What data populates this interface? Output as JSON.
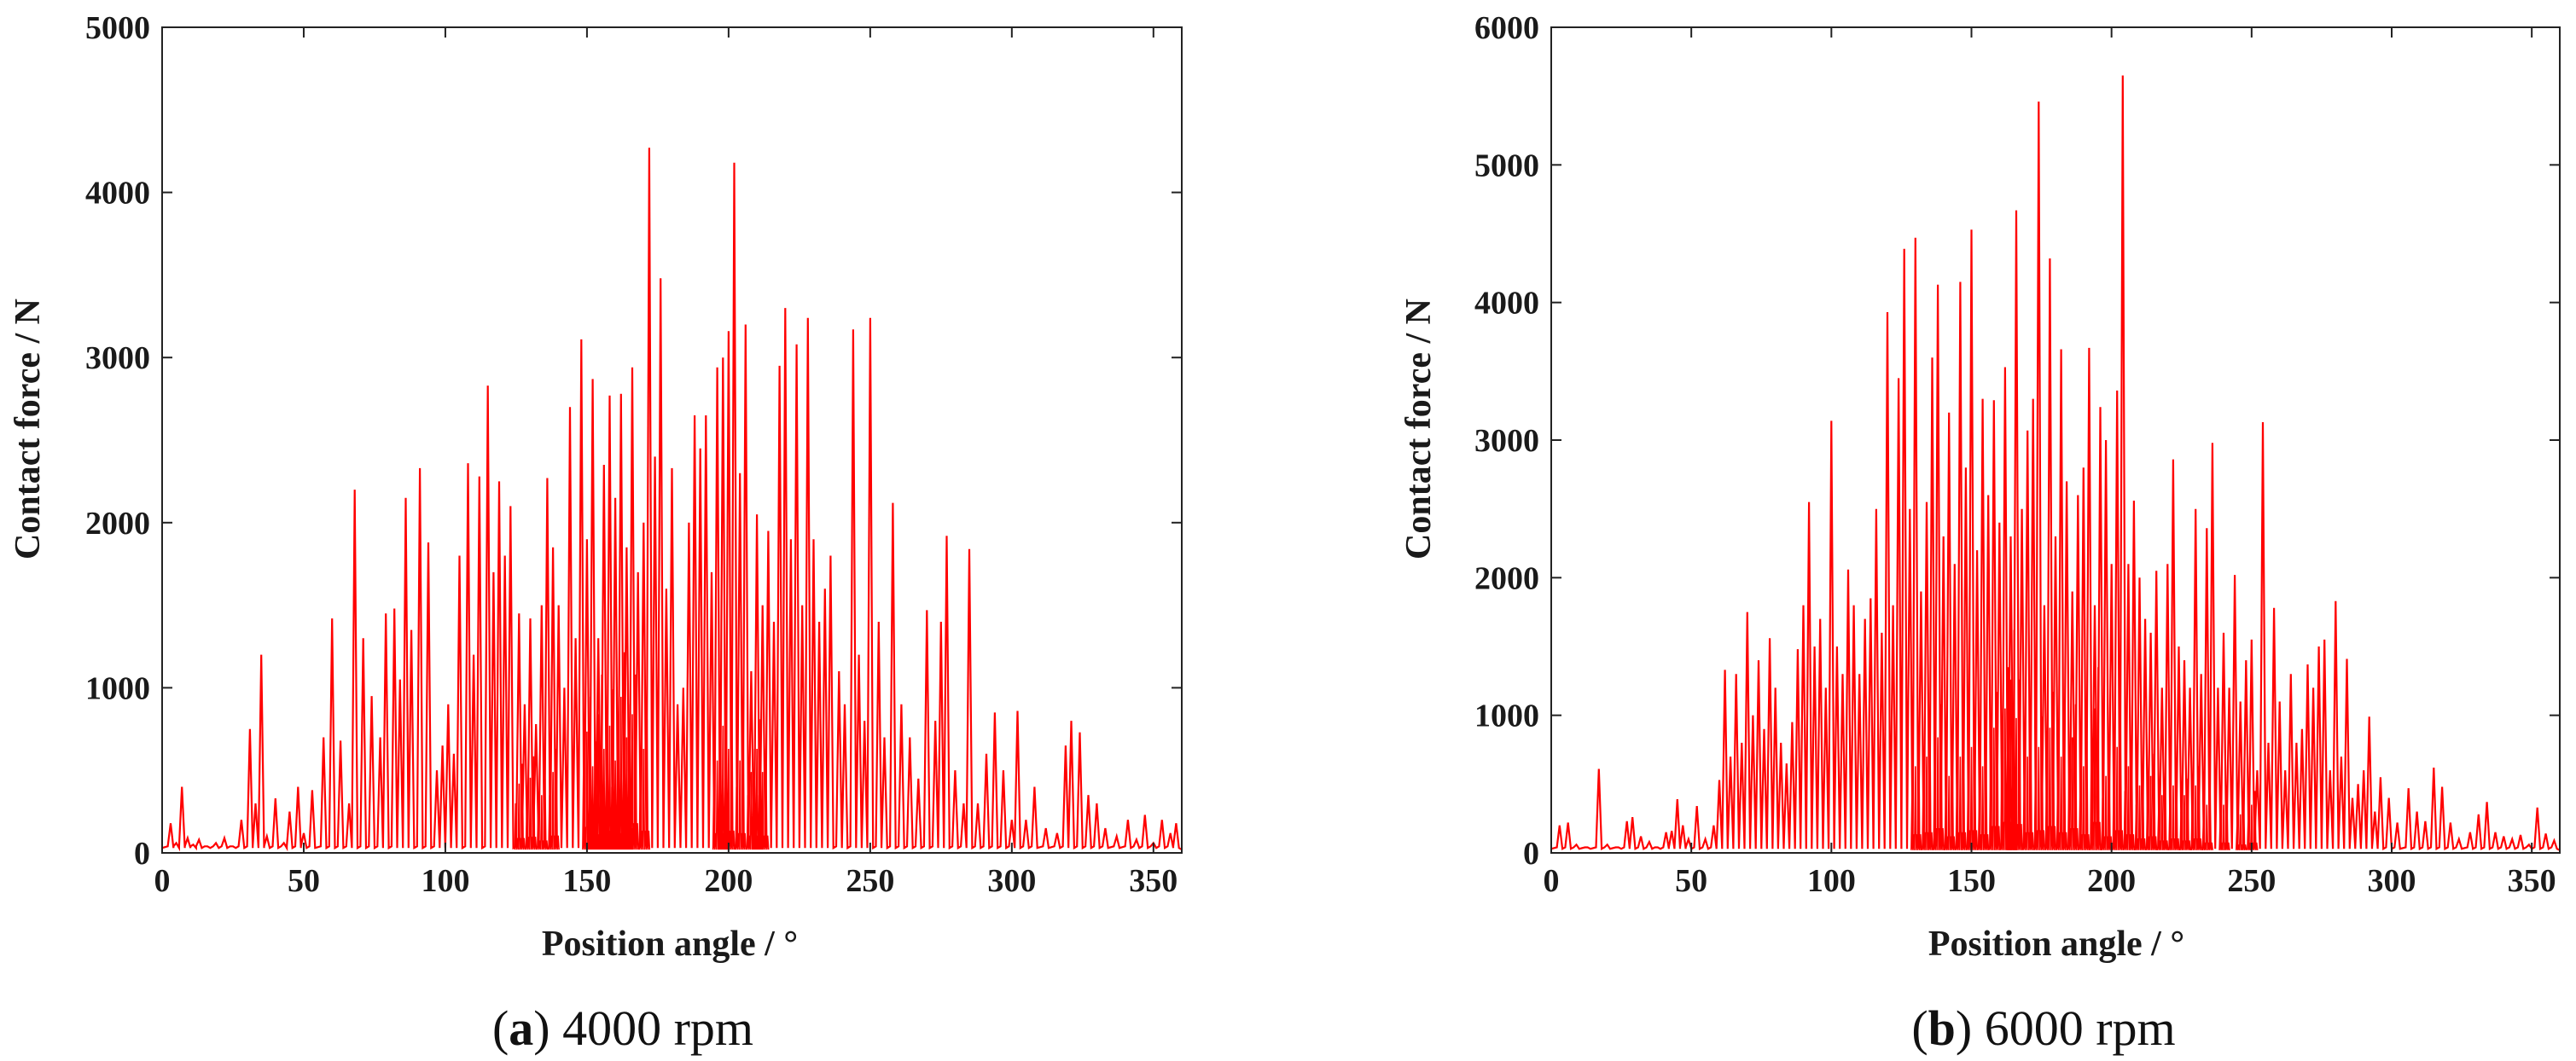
{
  "chart_data": [
    {
      "type": "line",
      "caption": {
        "letter": "a",
        "text": "4000 rpm"
      },
      "xlabel": "Position angle / °",
      "ylabel": "Contact force / N",
      "xlim": [
        0,
        360
      ],
      "ylim": [
        0,
        5000
      ],
      "xticks": [
        0,
        50,
        100,
        150,
        200,
        250,
        300,
        350
      ],
      "yticks": [
        0,
        1000,
        2000,
        3000,
        4000,
        5000
      ],
      "color": "#ff0000",
      "grid": false,
      "peaks": [
        [
          3,
          180
        ],
        [
          5,
          60
        ],
        [
          7,
          400
        ],
        [
          9,
          90
        ],
        [
          11,
          50
        ],
        [
          13,
          80
        ],
        [
          16,
          40
        ],
        [
          19,
          60
        ],
        [
          22,
          90
        ],
        [
          25,
          40
        ],
        [
          28,
          200
        ],
        [
          31,
          750
        ],
        [
          33,
          300
        ],
        [
          35,
          1200
        ],
        [
          37,
          100
        ],
        [
          40,
          330
        ],
        [
          43,
          60
        ],
        [
          45,
          250
        ],
        [
          48,
          400
        ],
        [
          50,
          120
        ],
        [
          53,
          380
        ],
        [
          57,
          700
        ],
        [
          60,
          1420
        ],
        [
          63,
          680
        ],
        [
          66,
          300
        ],
        [
          68,
          2200
        ],
        [
          71,
          1300
        ],
        [
          74,
          950
        ],
        [
          77,
          700
        ],
        [
          79,
          1450
        ],
        [
          82,
          1480
        ],
        [
          84,
          1050
        ],
        [
          86,
          2150
        ],
        [
          88,
          1350
        ],
        [
          91,
          2330
        ],
        [
          94,
          1880
        ],
        [
          97,
          500
        ],
        [
          99,
          650
        ],
        [
          101,
          900
        ],
        [
          103,
          600
        ],
        [
          105,
          1800
        ],
        [
          108,
          2360
        ],
        [
          110,
          1200
        ],
        [
          112,
          2280
        ],
        [
          115,
          2830
        ],
        [
          117,
          1700
        ],
        [
          119,
          2250
        ],
        [
          121,
          1800
        ],
        [
          123,
          2100
        ],
        [
          126,
          1450
        ],
        [
          128,
          900
        ],
        [
          130,
          1420
        ],
        [
          132,
          780
        ],
        [
          134,
          1500
        ],
        [
          136,
          2270
        ],
        [
          138,
          1850
        ],
        [
          140,
          1500
        ],
        [
          142,
          1000
        ],
        [
          144,
          2700
        ],
        [
          146,
          1300
        ],
        [
          148,
          3110
        ],
        [
          150,
          1900
        ],
        [
          152,
          2870
        ],
        [
          154,
          1300
        ],
        [
          156,
          2350
        ],
        [
          158,
          2770
        ],
        [
          160,
          2150
        ],
        [
          162,
          2780
        ],
        [
          164,
          1850
        ],
        [
          166,
          2940
        ],
        [
          168,
          1700
        ],
        [
          170,
          2000
        ],
        [
          172,
          4270
        ],
        [
          174,
          2400
        ],
        [
          176,
          3480
        ],
        [
          178,
          1600
        ],
        [
          180,
          2330
        ],
        [
          182,
          900
        ],
        [
          184,
          1000
        ],
        [
          186,
          2000
        ],
        [
          188,
          2650
        ],
        [
          190,
          2450
        ],
        [
          192,
          2650
        ],
        [
          194,
          1700
        ],
        [
          196,
          2940
        ],
        [
          198,
          3000
        ],
        [
          200,
          3160
        ],
        [
          202,
          4180
        ],
        [
          204,
          2300
        ],
        [
          206,
          3200
        ],
        [
          208,
          1100
        ],
        [
          210,
          2050
        ],
        [
          212,
          1500
        ],
        [
          214,
          1950
        ],
        [
          216,
          1400
        ],
        [
          218,
          2950
        ],
        [
          220,
          3300
        ],
        [
          222,
          1900
        ],
        [
          224,
          3080
        ],
        [
          226,
          1500
        ],
        [
          228,
          3240
        ],
        [
          230,
          1900
        ],
        [
          232,
          1400
        ],
        [
          234,
          1600
        ],
        [
          236,
          1800
        ],
        [
          239,
          1100
        ],
        [
          241,
          900
        ],
        [
          244,
          3170
        ],
        [
          246,
          1200
        ],
        [
          248,
          800
        ],
        [
          250,
          3240
        ],
        [
          253,
          1400
        ],
        [
          255,
          700
        ],
        [
          258,
          2120
        ],
        [
          261,
          900
        ],
        [
          264,
          700
        ],
        [
          267,
          450
        ],
        [
          270,
          1470
        ],
        [
          273,
          800
        ],
        [
          275,
          1400
        ],
        [
          277,
          1920
        ],
        [
          280,
          500
        ],
        [
          283,
          300
        ],
        [
          285,
          1840
        ],
        [
          288,
          300
        ],
        [
          291,
          600
        ],
        [
          294,
          850
        ],
        [
          297,
          500
        ],
        [
          300,
          200
        ],
        [
          302,
          860
        ],
        [
          305,
          200
        ],
        [
          308,
          400
        ],
        [
          312,
          150
        ],
        [
          316,
          120
        ],
        [
          319,
          650
        ],
        [
          321,
          800
        ],
        [
          324,
          730
        ],
        [
          327,
          350
        ],
        [
          330,
          300
        ],
        [
          333,
          150
        ],
        [
          337,
          100
        ],
        [
          341,
          200
        ],
        [
          344,
          80
        ],
        [
          347,
          230
        ],
        [
          350,
          60
        ],
        [
          353,
          200
        ],
        [
          356,
          120
        ],
        [
          358,
          180
        ]
      ],
      "noise": [
        [
          150,
          1050
        ],
        [
          152,
          750
        ],
        [
          154,
          1200
        ],
        [
          156,
          900
        ],
        [
          158,
          1100
        ],
        [
          160,
          800
        ],
        [
          162,
          1350
        ],
        [
          164,
          1000
        ],
        [
          166,
          1200
        ],
        [
          170,
          900
        ],
        [
          196,
          800
        ],
        [
          198,
          1100
        ],
        [
          200,
          900
        ],
        [
          204,
          800
        ],
        [
          208,
          700
        ],
        [
          210,
          900
        ],
        [
          212,
          700
        ],
        [
          126,
          600
        ],
        [
          130,
          650
        ],
        [
          134,
          500
        ],
        [
          138,
          700
        ]
      ]
    },
    {
      "type": "line",
      "caption": {
        "letter": "b",
        "text": "6000 rpm"
      },
      "xlabel": "Position angle / °",
      "ylabel": "Contact force / N",
      "xlim": [
        0,
        360
      ],
      "ylim": [
        0,
        6000
      ],
      "xticks": [
        0,
        50,
        100,
        150,
        200,
        250,
        300,
        350
      ],
      "yticks": [
        0,
        1000,
        2000,
        3000,
        4000,
        5000,
        6000
      ],
      "color": "#ff0000",
      "grid": false,
      "peaks": [
        [
          3,
          200
        ],
        [
          6,
          220
        ],
        [
          9,
          60
        ],
        [
          13,
          40
        ],
        [
          17,
          610
        ],
        [
          20,
          60
        ],
        [
          24,
          40
        ],
        [
          27,
          230
        ],
        [
          29,
          260
        ],
        [
          32,
          120
        ],
        [
          35,
          80
        ],
        [
          38,
          40
        ],
        [
          41,
          150
        ],
        [
          43,
          160
        ],
        [
          45,
          390
        ],
        [
          47,
          200
        ],
        [
          49,
          100
        ],
        [
          52,
          340
        ],
        [
          55,
          100
        ],
        [
          58,
          200
        ],
        [
          60,
          530
        ],
        [
          62,
          1330
        ],
        [
          64,
          700
        ],
        [
          66,
          1300
        ],
        [
          68,
          800
        ],
        [
          70,
          1750
        ],
        [
          72,
          1000
        ],
        [
          74,
          1400
        ],
        [
          76,
          900
        ],
        [
          78,
          1560
        ],
        [
          80,
          1200
        ],
        [
          82,
          800
        ],
        [
          84,
          650
        ],
        [
          86,
          950
        ],
        [
          88,
          1480
        ],
        [
          90,
          1800
        ],
        [
          92,
          2550
        ],
        [
          94,
          1500
        ],
        [
          96,
          1700
        ],
        [
          98,
          1200
        ],
        [
          100,
          3140
        ],
        [
          102,
          1500
        ],
        [
          104,
          1300
        ],
        [
          106,
          2060
        ],
        [
          108,
          1800
        ],
        [
          110,
          1300
        ],
        [
          112,
          1700
        ],
        [
          114,
          1850
        ],
        [
          116,
          2500
        ],
        [
          118,
          1600
        ],
        [
          120,
          3930
        ],
        [
          122,
          1800
        ],
        [
          124,
          3450
        ],
        [
          126,
          4390
        ],
        [
          128,
          2500
        ],
        [
          130,
          4470
        ],
        [
          132,
          1900
        ],
        [
          134,
          2550
        ],
        [
          136,
          3600
        ],
        [
          138,
          4130
        ],
        [
          140,
          2300
        ],
        [
          142,
          3200
        ],
        [
          144,
          2100
        ],
        [
          146,
          4150
        ],
        [
          148,
          2800
        ],
        [
          150,
          4530
        ],
        [
          152,
          2200
        ],
        [
          154,
          3300
        ],
        [
          156,
          2600
        ],
        [
          158,
          3290
        ],
        [
          160,
          2400
        ],
        [
          162,
          3530
        ],
        [
          164,
          2300
        ],
        [
          166,
          4670
        ],
        [
          168,
          2500
        ],
        [
          170,
          3070
        ],
        [
          172,
          3300
        ],
        [
          174,
          5460
        ],
        [
          176,
          1800
        ],
        [
          178,
          4320
        ],
        [
          180,
          2300
        ],
        [
          182,
          3660
        ],
        [
          184,
          2700
        ],
        [
          186,
          1900
        ],
        [
          188,
          2600
        ],
        [
          190,
          2800
        ],
        [
          192,
          3670
        ],
        [
          194,
          1800
        ],
        [
          196,
          3240
        ],
        [
          198,
          3000
        ],
        [
          200,
          2100
        ],
        [
          202,
          3360
        ],
        [
          204,
          5650
        ],
        [
          206,
          2100
        ],
        [
          208,
          2560
        ],
        [
          210,
          2000
        ],
        [
          212,
          1700
        ],
        [
          214,
          1600
        ],
        [
          216,
          2050
        ],
        [
          218,
          1200
        ],
        [
          220,
          2100
        ],
        [
          222,
          2860
        ],
        [
          224,
          1500
        ],
        [
          226,
          1400
        ],
        [
          228,
          1200
        ],
        [
          230,
          2500
        ],
        [
          232,
          1300
        ],
        [
          234,
          2360
        ],
        [
          236,
          2980
        ],
        [
          238,
          1200
        ],
        [
          240,
          1600
        ],
        [
          242,
          1200
        ],
        [
          244,
          2020
        ],
        [
          246,
          1100
        ],
        [
          248,
          1400
        ],
        [
          250,
          1550
        ],
        [
          252,
          600
        ],
        [
          254,
          3130
        ],
        [
          256,
          800
        ],
        [
          258,
          1780
        ],
        [
          260,
          1100
        ],
        [
          262,
          600
        ],
        [
          264,
          1300
        ],
        [
          266,
          800
        ],
        [
          268,
          900
        ],
        [
          270,
          1370
        ],
        [
          272,
          1200
        ],
        [
          274,
          1500
        ],
        [
          276,
          1550
        ],
        [
          278,
          600
        ],
        [
          280,
          1830
        ],
        [
          282,
          700
        ],
        [
          284,
          1410
        ],
        [
          286,
          400
        ],
        [
          288,
          500
        ],
        [
          290,
          600
        ],
        [
          292,
          990
        ],
        [
          294,
          300
        ],
        [
          296,
          550
        ],
        [
          299,
          400
        ],
        [
          302,
          220
        ],
        [
          306,
          470
        ],
        [
          309,
          300
        ],
        [
          312,
          230
        ],
        [
          315,
          620
        ],
        [
          318,
          480
        ],
        [
          321,
          220
        ],
        [
          324,
          100
        ],
        [
          328,
          150
        ],
        [
          331,
          280
        ],
        [
          334,
          370
        ],
        [
          337,
          150
        ],
        [
          340,
          120
        ],
        [
          343,
          100
        ],
        [
          346,
          130
        ],
        [
          349,
          60
        ],
        [
          352,
          330
        ],
        [
          355,
          140
        ],
        [
          358,
          90
        ]
      ],
      "noise": [
        [
          130,
          900
        ],
        [
          134,
          1000
        ],
        [
          138,
          1200
        ],
        [
          142,
          800
        ],
        [
          146,
          1000
        ],
        [
          150,
          1100
        ],
        [
          154,
          900
        ],
        [
          158,
          1300
        ],
        [
          162,
          1500
        ],
        [
          164,
          1800
        ],
        [
          166,
          1400
        ],
        [
          170,
          1000
        ],
        [
          174,
          1100
        ],
        [
          178,
          1300
        ],
        [
          182,
          1000
        ],
        [
          186,
          1200
        ],
        [
          190,
          900
        ],
        [
          194,
          1500
        ],
        [
          198,
          800
        ],
        [
          202,
          1100
        ],
        [
          206,
          900
        ],
        [
          210,
          700
        ],
        [
          214,
          800
        ],
        [
          218,
          600
        ],
        [
          222,
          700
        ],
        [
          226,
          600
        ],
        [
          230,
          700
        ],
        [
          234,
          500
        ],
        [
          240,
          500
        ],
        [
          246,
          400
        ],
        [
          250,
          500
        ]
      ]
    }
  ]
}
